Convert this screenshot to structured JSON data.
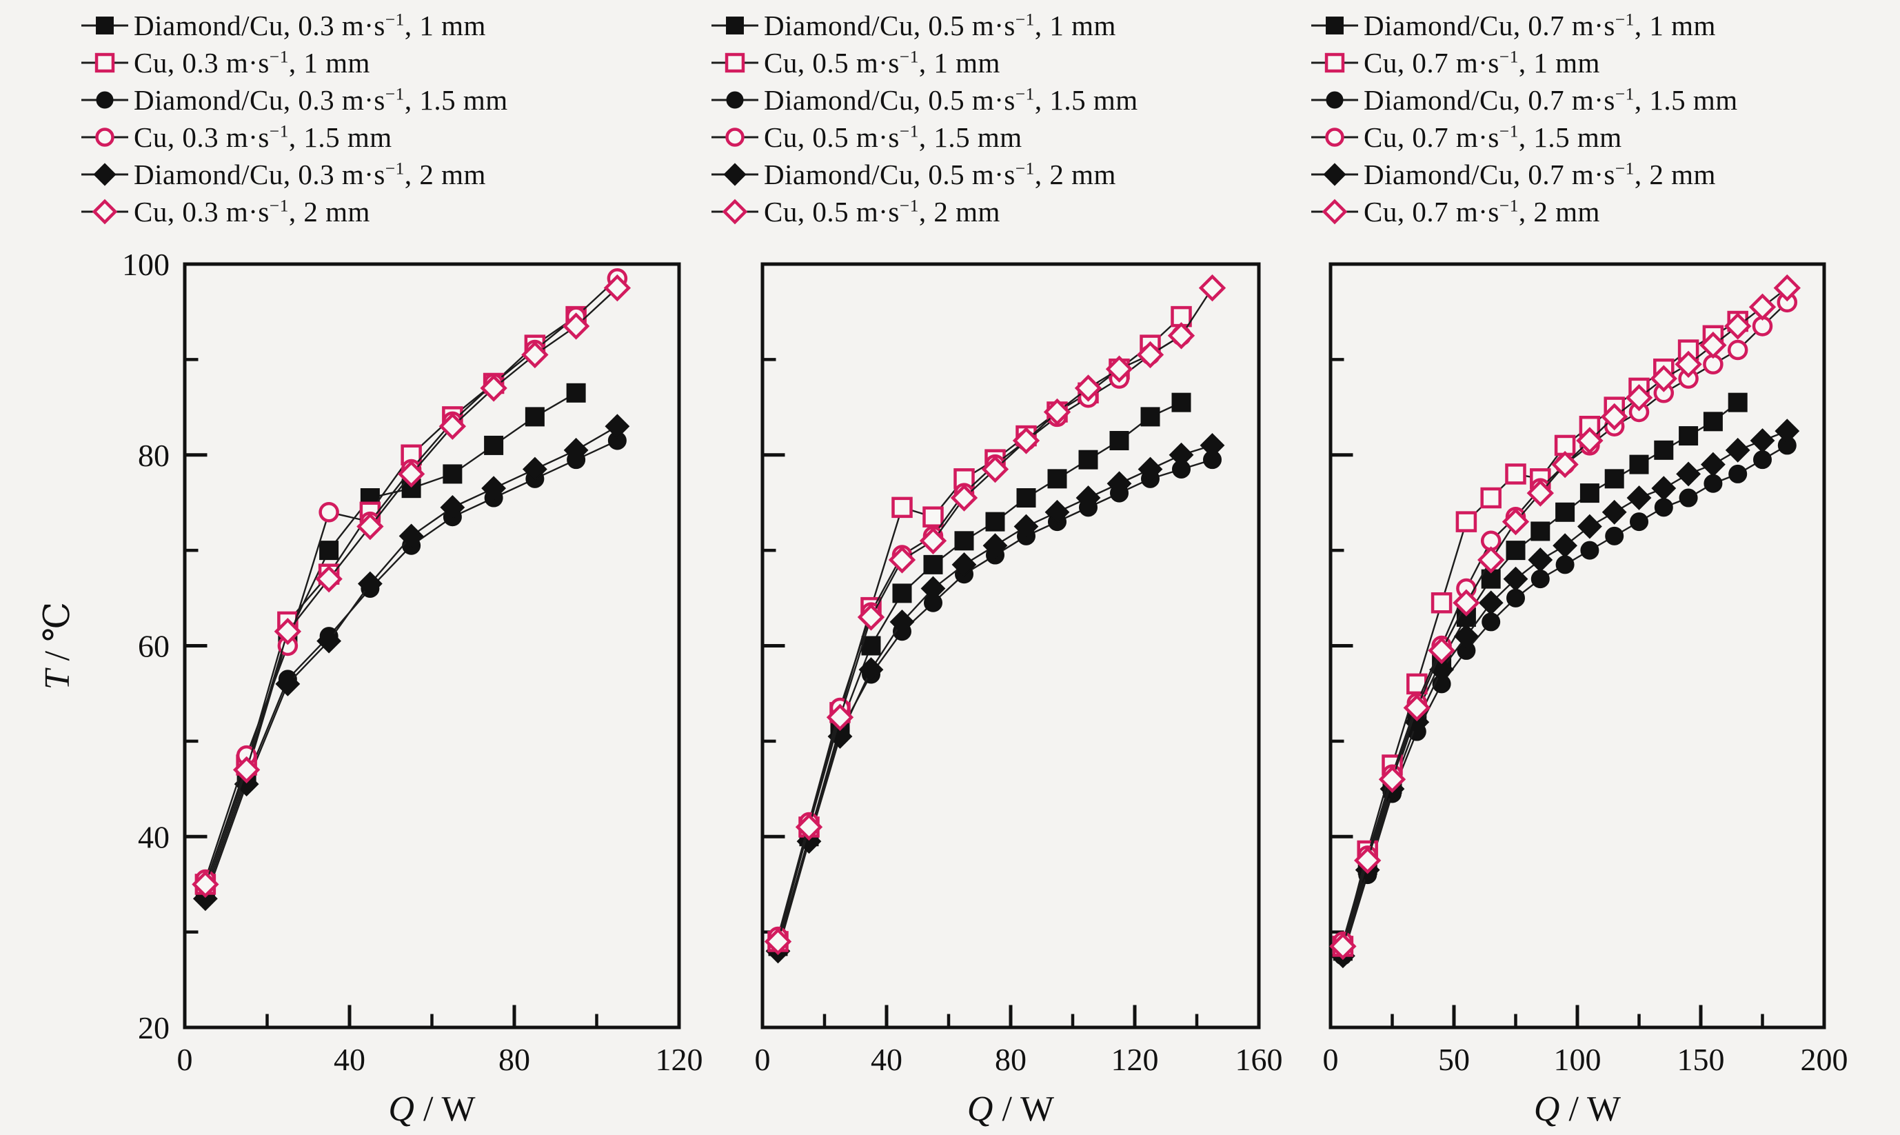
{
  "figure": {
    "background": "#f4f3f1",
    "accent_color": "#d21b5e",
    "black_color": "#111111",
    "line_color": "#1c1c1c",
    "open_marker_fill": "#f8f7f5"
  },
  "legend_columns": [
    {
      "speed_label": "0.3 m·s⁻¹",
      "items": [
        {
          "label": "Diamond/Cu, 0.3 m·s⁻¹, 1 mm",
          "marker": "square",
          "filled": true
        },
        {
          "label": "Cu, 0.3 m·s⁻¹, 1 mm",
          "marker": "square",
          "filled": false
        },
        {
          "label": "Diamond/Cu, 0.3 m·s⁻¹, 1.5 mm",
          "marker": "circle",
          "filled": true
        },
        {
          "label": "Cu, 0.3 m·s⁻¹, 1.5 mm",
          "marker": "circle",
          "filled": false
        },
        {
          "label": "Diamond/Cu, 0.3 m·s⁻¹, 2 mm",
          "marker": "diamond",
          "filled": true
        },
        {
          "label": "Cu, 0.3 m·s⁻¹, 2 mm",
          "marker": "diamond",
          "filled": false
        }
      ]
    },
    {
      "speed_label": "0.5 m·s⁻¹",
      "items": [
        {
          "label": "Diamond/Cu, 0.5 m·s⁻¹, 1 mm",
          "marker": "square",
          "filled": true
        },
        {
          "label": "Cu, 0.5 m·s⁻¹, 1 mm",
          "marker": "square",
          "filled": false
        },
        {
          "label": "Diamond/Cu, 0.5 m·s⁻¹, 1.5 mm",
          "marker": "circle",
          "filled": true
        },
        {
          "label": "Cu, 0.5 m·s⁻¹, 1.5 mm",
          "marker": "circle",
          "filled": false
        },
        {
          "label": "Diamond/Cu, 0.5 m·s⁻¹, 2 mm",
          "marker": "diamond",
          "filled": true
        },
        {
          "label": "Cu, 0.5 m·s⁻¹, 2 mm",
          "marker": "diamond",
          "filled": false
        }
      ]
    },
    {
      "speed_label": "0.7 m·s⁻¹",
      "items": [
        {
          "label": "Diamond/Cu, 0.7 m·s⁻¹, 1 mm",
          "marker": "square",
          "filled": true
        },
        {
          "label": "Cu, 0.7 m·s⁻¹, 1 mm",
          "marker": "square",
          "filled": false
        },
        {
          "label": "Diamond/Cu, 0.7 m·s⁻¹, 1.5 mm",
          "marker": "circle",
          "filled": true
        },
        {
          "label": "Cu, 0.7 m·s⁻¹, 1.5 mm",
          "marker": "circle",
          "filled": false
        },
        {
          "label": "Diamond/Cu, 0.7 m·s⁻¹, 2 mm",
          "marker": "diamond",
          "filled": true
        },
        {
          "label": "Cu, 0.7 m·s⁻¹, 2 mm",
          "marker": "diamond",
          "filled": false
        }
      ]
    }
  ],
  "chart_data": [
    {
      "type": "line",
      "panel": "0.3 m·s⁻¹",
      "xlabel": "Q / W",
      "ylabel": "T / ℃",
      "xlim": [
        0,
        120
      ],
      "ylim": [
        20,
        100
      ],
      "xticks_major": [
        0,
        40,
        80,
        120
      ],
      "xticks_minor": [
        20,
        60,
        100
      ],
      "yticks_major": [
        20,
        40,
        60,
        80,
        100
      ],
      "yticks_minor": [
        30,
        50,
        70,
        90
      ],
      "show_y_tick_labels": true,
      "grid": false,
      "legend_position": "top",
      "series": [
        {
          "name": "Diamond/Cu, 0.3 m·s⁻¹, 1 mm",
          "marker": "square",
          "filled": true,
          "color": "#111111",
          "x": [
            5,
            15,
            25,
            35,
            45,
            55,
            65,
            75,
            85,
            95
          ],
          "y": [
            34.5,
            46.5,
            61,
            70,
            75.5,
            76.5,
            78,
            81,
            84,
            86.5
          ]
        },
        {
          "name": "Diamond/Cu, 0.3 m·s⁻¹, 1.5 mm",
          "marker": "circle",
          "filled": true,
          "color": "#111111",
          "x": [
            5,
            15,
            25,
            35,
            45,
            55,
            65,
            75,
            85,
            95,
            105
          ],
          "y": [
            34,
            46,
            56.5,
            61,
            66,
            70.5,
            73.5,
            75.5,
            77.5,
            79.5,
            81.5
          ]
        },
        {
          "name": "Diamond/Cu, 0.3 m·s⁻¹, 2 mm",
          "marker": "diamond",
          "filled": true,
          "color": "#111111",
          "x": [
            5,
            15,
            25,
            35,
            45,
            55,
            65,
            75,
            85,
            95,
            105
          ],
          "y": [
            33.5,
            45.5,
            56,
            60.5,
            66.5,
            71.5,
            74.5,
            76.5,
            78.5,
            80.5,
            83
          ]
        },
        {
          "name": "Cu, 0.3 m·s⁻¹, 1 mm",
          "marker": "square",
          "filled": false,
          "color": "#d21b5e",
          "x": [
            5,
            15,
            25,
            35,
            45,
            55,
            65,
            75,
            85,
            95
          ],
          "y": [
            35,
            47.5,
            62.5,
            67.5,
            74,
            80,
            84,
            87.5,
            91.5,
            94.5
          ]
        },
        {
          "name": "Cu, 0.3 m·s⁻¹, 1.5 mm",
          "marker": "circle",
          "filled": false,
          "color": "#d21b5e",
          "x": [
            5,
            15,
            25,
            35,
            45,
            55,
            65,
            75,
            85,
            95,
            105
          ],
          "y": [
            35.5,
            48.5,
            60,
            74,
            73,
            78.5,
            83.5,
            87.5,
            91,
            94.5,
            98.5
          ]
        },
        {
          "name": "Cu, 0.3 m·s⁻¹, 2 mm",
          "marker": "diamond",
          "filled": false,
          "color": "#d21b5e",
          "x": [
            5,
            15,
            25,
            35,
            45,
            55,
            65,
            75,
            85,
            95,
            105
          ],
          "y": [
            35,
            47,
            61.5,
            67,
            72.5,
            78,
            83,
            87,
            90.5,
            93.5,
            97.5
          ]
        }
      ]
    },
    {
      "type": "line",
      "panel": "0.5 m·s⁻¹",
      "xlabel": "Q / W",
      "ylabel": "",
      "xlim": [
        0,
        160
      ],
      "ylim": [
        20,
        100
      ],
      "xticks_major": [
        0,
        40,
        80,
        120,
        160
      ],
      "xticks_minor": [
        20,
        60,
        100,
        140
      ],
      "yticks_major": [
        20,
        40,
        60,
        80,
        100
      ],
      "yticks_minor": [
        30,
        50,
        70,
        90
      ],
      "show_y_tick_labels": false,
      "grid": false,
      "legend_position": "top",
      "series": [
        {
          "name": "Diamond/Cu, 0.5 m·s⁻¹, 1 mm",
          "marker": "square",
          "filled": true,
          "color": "#111111",
          "x": [
            5,
            15,
            25,
            35,
            45,
            55,
            65,
            75,
            85,
            95,
            105,
            115,
            125,
            135
          ],
          "y": [
            28.5,
            40,
            51.5,
            60,
            65.5,
            68.5,
            71,
            73,
            75.5,
            77.5,
            79.5,
            81.5,
            84,
            85.5
          ]
        },
        {
          "name": "Diamond/Cu, 0.5 m·s⁻¹, 1.5 mm",
          "marker": "circle",
          "filled": true,
          "color": "#111111",
          "x": [
            5,
            15,
            25,
            35,
            45,
            55,
            65,
            75,
            85,
            95,
            105,
            115,
            125,
            135,
            145
          ],
          "y": [
            28.5,
            40,
            51,
            57,
            61.5,
            64.5,
            67.5,
            69.5,
            71.5,
            73,
            74.5,
            76,
            77.5,
            78.5,
            79.5
          ]
        },
        {
          "name": "Diamond/Cu, 0.5 m·s⁻¹, 2 mm",
          "marker": "diamond",
          "filled": true,
          "color": "#111111",
          "x": [
            5,
            15,
            25,
            35,
            45,
            55,
            65,
            75,
            85,
            95,
            105,
            115,
            125,
            135,
            145
          ],
          "y": [
            28,
            39.5,
            50.5,
            57.5,
            62.5,
            66,
            68.5,
            70.5,
            72.5,
            74,
            75.5,
            77,
            78.5,
            80,
            81
          ]
        },
        {
          "name": "Cu, 0.5 m·s⁻¹, 1 mm",
          "marker": "square",
          "filled": false,
          "color": "#d21b5e",
          "x": [
            5,
            15,
            25,
            35,
            45,
            55,
            65,
            75,
            85,
            95,
            105,
            115,
            125,
            135
          ],
          "y": [
            29,
            41,
            53,
            64,
            74.5,
            73.5,
            77.5,
            79.5,
            82,
            84.5,
            86.5,
            89,
            91.5,
            94.5
          ]
        },
        {
          "name": "Cu, 0.5 m·s⁻¹, 1.5 mm",
          "marker": "circle",
          "filled": false,
          "color": "#d21b5e",
          "x": [
            5,
            15,
            25,
            35,
            45,
            55,
            65,
            75,
            85,
            95,
            105,
            115,
            125,
            135
          ],
          "y": [
            29.5,
            41.5,
            53.5,
            63.5,
            69.5,
            71.5,
            76,
            79,
            81.5,
            84,
            86,
            88,
            90.5,
            92.5
          ]
        },
        {
          "name": "Cu, 0.5 m·s⁻¹, 2 mm",
          "marker": "diamond",
          "filled": false,
          "color": "#d21b5e",
          "x": [
            5,
            15,
            25,
            35,
            45,
            55,
            65,
            75,
            85,
            95,
            105,
            115,
            125,
            135,
            145
          ],
          "y": [
            29,
            41,
            52.5,
            63,
            69,
            71,
            75.5,
            78.5,
            81.5,
            84.5,
            87,
            89,
            90.5,
            92.5,
            97.5
          ]
        }
      ]
    },
    {
      "type": "line",
      "panel": "0.7 m·s⁻¹",
      "xlabel": "Q / W",
      "ylabel": "",
      "xlim": [
        0,
        200
      ],
      "ylim": [
        20,
        100
      ],
      "xticks_major": [
        0,
        50,
        100,
        150,
        200
      ],
      "xticks_minor": [
        25,
        75,
        125,
        175
      ],
      "yticks_major": [
        20,
        40,
        60,
        80,
        100
      ],
      "yticks_minor": [
        30,
        50,
        70,
        90
      ],
      "show_y_tick_labels": false,
      "grid": false,
      "legend_position": "top",
      "series": [
        {
          "name": "Diamond/Cu, 0.7 m·s⁻¹, 1 mm",
          "marker": "square",
          "filled": true,
          "color": "#111111",
          "x": [
            5,
            15,
            25,
            35,
            45,
            55,
            65,
            75,
            85,
            95,
            105,
            115,
            125,
            135,
            145,
            155,
            165
          ],
          "y": [
            28,
            37,
            45.5,
            53,
            58.5,
            63,
            67,
            70,
            72,
            74,
            76,
            77.5,
            79,
            80.5,
            82,
            83.5,
            85.5
          ]
        },
        {
          "name": "Diamond/Cu, 0.7 m·s⁻¹, 1.5 mm",
          "marker": "circle",
          "filled": true,
          "color": "#111111",
          "x": [
            5,
            15,
            25,
            35,
            45,
            55,
            65,
            75,
            85,
            95,
            105,
            115,
            125,
            135,
            145,
            155,
            165,
            175,
            185
          ],
          "y": [
            27.5,
            36,
            44.5,
            51,
            56,
            59.5,
            62.5,
            65,
            67,
            68.5,
            70,
            71.5,
            73,
            74.5,
            75.5,
            77,
            78,
            79.5,
            81
          ]
        },
        {
          "name": "Diamond/Cu, 0.7 m·s⁻¹, 2 mm",
          "marker": "diamond",
          "filled": true,
          "color": "#111111",
          "x": [
            5,
            15,
            25,
            35,
            45,
            55,
            65,
            75,
            85,
            95,
            105,
            115,
            125,
            135,
            145,
            155,
            165,
            175,
            185
          ],
          "y": [
            27.5,
            36.5,
            45,
            52,
            57.5,
            61,
            64.5,
            67,
            69,
            70.5,
            72.5,
            74,
            75.5,
            76.5,
            78,
            79,
            80.5,
            81.5,
            82.5
          ]
        },
        {
          "name": "Cu, 0.7 m·s⁻¹, 1 mm",
          "marker": "square",
          "filled": false,
          "color": "#d21b5e",
          "x": [
            5,
            15,
            25,
            35,
            45,
            55,
            65,
            75,
            85,
            95,
            105,
            115,
            125,
            135,
            145,
            155,
            165
          ],
          "y": [
            28.5,
            38.5,
            47.5,
            56,
            64.5,
            73,
            75.5,
            78,
            77.5,
            81,
            83,
            85,
            87,
            89,
            91,
            92.5,
            94
          ]
        },
        {
          "name": "Cu, 0.7 m·s⁻¹, 1.5 mm",
          "marker": "circle",
          "filled": false,
          "color": "#d21b5e",
          "x": [
            5,
            15,
            25,
            35,
            45,
            55,
            65,
            75,
            85,
            95,
            105,
            115,
            125,
            135,
            145,
            155,
            165,
            175,
            185
          ],
          "y": [
            29,
            38,
            46.5,
            54,
            60,
            66,
            71,
            73.5,
            76.5,
            79,
            81,
            83,
            84.5,
            86.5,
            88,
            89.5,
            91,
            93.5,
            96
          ]
        },
        {
          "name": "Cu, 0.7 m·s⁻¹, 2 mm",
          "marker": "diamond",
          "filled": false,
          "color": "#d21b5e",
          "x": [
            5,
            15,
            25,
            35,
            45,
            55,
            65,
            75,
            85,
            95,
            105,
            115,
            125,
            135,
            145,
            155,
            165,
            175,
            185
          ],
          "y": [
            28.5,
            37.5,
            46,
            53.5,
            59.5,
            64.5,
            69,
            73,
            76,
            79,
            81.5,
            84,
            86,
            88,
            89.5,
            91.5,
            93.5,
            95.5,
            97.5
          ]
        }
      ]
    }
  ]
}
